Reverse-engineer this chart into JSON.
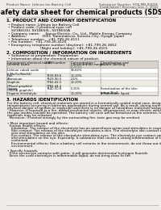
{
  "bg_color": "#f0ede8",
  "header_left": "Product Name: Lithium Ion Battery Cell",
  "header_right1": "Substance Number: SDS-MB-0001B",
  "header_right2": "Established / Revision: Dec 7, 2010",
  "title": "Safety data sheet for chemical products (SDS)",
  "s1_title": "1. PRODUCT AND COMPANY IDENTIFICATION",
  "s1_lines": [
    "• Product name: Lithium Ion Battery Cell",
    "• Product code: Cylindrical-type cell",
    "   SV18650U, SV18650L, SV18650A",
    "• Company name:     Sanyo Electric, Co., Ltd., Mobile Energy Company",
    "• Address:              2001  Kamimakura, Sumoto-City, Hyogo, Japan",
    "• Telephone number:   +81-799-26-4111",
    "• Fax number:  +81-799-26-4120",
    "• Emergency telephone number (daytime): +81-799-26-3662",
    "                             (Night and holiday): +81-799-26-4101"
  ],
  "s2_title": "2. COMPOSITION / INFORMATION ON INGREDIENTS",
  "s2_line1": "• Substance or preparation: Preparation",
  "s2_line2": "• Information about the chemical nature of product:",
  "table_rows": [
    [
      "Lithium cobalt oxide\n(LiMn/Co/NixO4)",
      "-",
      "30-60%",
      "-"
    ],
    [
      "Iron",
      "7439-89-6",
      "10-20%",
      "-"
    ],
    [
      "Aluminum",
      "7429-90-5",
      "2-5%",
      "-"
    ],
    [
      "Graphite\n(Mixed graphite)\n(MCMB graphite)",
      "7782-42-5\n7782-44-2",
      "10-20%",
      "-"
    ],
    [
      "Copper",
      "7440-50-8",
      "5-15%",
      "Sensitization of the skin\ngroup No.2"
    ],
    [
      "Organic electrolyte",
      "-",
      "10-20%",
      "Inflammable liquid"
    ]
  ],
  "s3_title": "3. HAZARDS IDENTIFICATION",
  "s3_lines": [
    "For the battery cell, chemical materials are stored in a hermetically-sealed metal case, designed to withstand",
    "temperatures occurring in batteries-applications during normal use. As a result, during normal-use, there is no",
    "physical danger of ignition or explosion and there is no danger of hazardous materials leakage.",
    "  However, if exposed to a fire, added mechanical shocks, decomposed, or near electric without any measures,",
    "the gas insides can/will be operated. The battery cell case will be breached at the extreme, hazardous",
    "materials may be released.",
    "  Moreover, if heated strongly by the surrounding fire, toxic gas may be emitted.",
    "",
    "• Most important hazard and effects:",
    "  Human health effects:",
    "    Inhalation: The release of the electrolyte has an anaesthesia action and stimulates in respiratory tract.",
    "    Skin contact: The release of the electrolyte stimulates a skin. The electrolyte skin contact causes a",
    "    sore and stimulation on the skin.",
    "    Eye contact: The release of the electrolyte stimulates eyes. The electrolyte eye contact causes a sore",
    "    and stimulation on the eye. Especially, a substance that causes a strong inflammation of the eye is",
    "    contained.",
    "    Environmental effects: Since a battery cell remains in the environment, do not throw out it into the",
    "    environment.",
    "",
    "• Specific hazards:",
    "  If the electrolyte contacts with water, it will generate detrimental hydrogen fluoride.",
    "  Since the used electrolyte is inflammable liquid, do not bring close to fire."
  ]
}
